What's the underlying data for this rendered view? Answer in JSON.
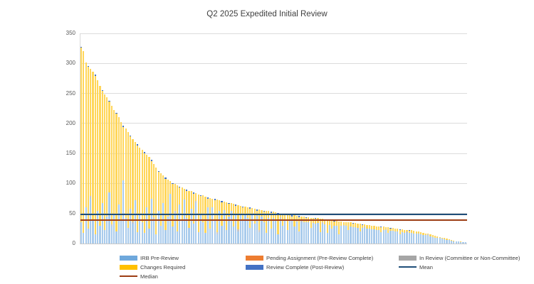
{
  "chart_data": {
    "type": "bar",
    "stacked": true,
    "title": "Q2 2025 Expedited Initial Review",
    "n_bars": 165,
    "grid": true,
    "legend_position": "bottom",
    "x_axis": {
      "labels_visible": false
    },
    "y_axis": {
      "min": 0,
      "max": 350,
      "tick_interval": 50,
      "ticks": [
        0,
        50,
        100,
        150,
        200,
        250,
        300,
        350
      ]
    },
    "series": [
      {
        "name": "IRB Pre-Review",
        "color": "#a9cbec",
        "values": [
          35,
          18,
          60,
          25,
          75,
          40,
          15,
          55,
          30,
          68,
          22,
          45,
          85,
          28,
          50,
          20,
          65,
          38,
          105,
          42,
          26,
          58,
          33,
          72,
          19,
          48,
          35,
          18,
          60,
          25,
          75,
          40,
          15,
          55,
          30,
          68,
          22,
          45,
          83,
          28,
          50,
          20,
          65,
          38,
          73,
          42,
          26,
          58,
          33,
          67,
          19,
          48,
          35,
          18,
          60,
          25,
          60,
          40,
          15,
          55,
          30,
          56,
          22,
          45,
          54,
          28,
          50,
          20,
          50,
          38,
          49,
          42,
          26,
          47,
          33,
          46,
          19,
          45,
          35,
          18,
          43,
          25,
          42,
          40,
          15,
          40,
          30,
          39,
          22,
          38,
          38,
          28,
          37,
          20,
          36,
          36,
          35,
          35,
          26,
          34,
          33,
          34,
          19,
          33,
          32,
          18,
          31,
          25,
          30,
          30,
          15,
          30,
          29,
          29,
          22,
          28,
          27,
          27,
          26,
          20,
          26,
          26,
          25,
          25,
          24,
          24,
          23,
          23,
          19,
          22,
          22,
          18,
          21,
          21,
          20,
          20,
          15,
          19,
          18,
          18,
          18,
          18,
          17,
          16,
          16,
          15,
          14,
          14,
          13,
          12,
          11,
          10,
          10,
          9,
          8,
          7,
          6,
          6,
          5,
          4,
          3,
          3,
          2,
          2,
          2
        ]
      },
      {
        "name": "Pending Assignment (Pre-Review Complete)",
        "color": "#ed7d31",
        "values": [
          0,
          0,
          0,
          0,
          0,
          0,
          0,
          0,
          0,
          0,
          0,
          0,
          0,
          0,
          0,
          0,
          0,
          0,
          0,
          0,
          0,
          0,
          0,
          0,
          0,
          0,
          0,
          0,
          0,
          0,
          0,
          0,
          0,
          0,
          0,
          0,
          0,
          0,
          0,
          0,
          0,
          0,
          0,
          0,
          0,
          0,
          0,
          0,
          0,
          0,
          0,
          0,
          0,
          0,
          0,
          0,
          0,
          0,
          0,
          0,
          0,
          0,
          0,
          0,
          0,
          0,
          0,
          0,
          0,
          0,
          0,
          0,
          0,
          0,
          0,
          0,
          0,
          0,
          0,
          0,
          0,
          0,
          0,
          0,
          0,
          0,
          0,
          0,
          0,
          0,
          0,
          0,
          0,
          0,
          0,
          0,
          0,
          0,
          0,
          0,
          0,
          0,
          0,
          0,
          0,
          0,
          0,
          0,
          0,
          0,
          0,
          0,
          0,
          0,
          0,
          0,
          0,
          0,
          0,
          0,
          0,
          0,
          0,
          0,
          0,
          0,
          0,
          0,
          0,
          0,
          0,
          0,
          0,
          0,
          0,
          0,
          0,
          0,
          0,
          0,
          0,
          0,
          0,
          0,
          0,
          0,
          0,
          0,
          0,
          0,
          0,
          0,
          0,
          0,
          0,
          0,
          0,
          0,
          0,
          0,
          0,
          0,
          0,
          0,
          0
        ]
      },
      {
        "name": "In Review (Committee or Non-Committee)",
        "color": "#c6c4c4",
        "values": [
          0,
          0,
          0,
          0,
          4,
          0,
          0,
          0,
          0,
          0,
          0,
          0,
          0,
          4,
          0,
          0,
          0,
          0,
          0,
          0,
          0,
          0,
          4,
          0,
          0,
          0,
          0,
          0,
          0,
          0,
          0,
          4,
          0,
          0,
          0,
          0,
          0,
          0,
          0,
          0,
          4,
          0,
          0,
          0,
          0,
          0,
          0,
          0,
          0,
          4,
          0,
          0,
          0,
          0,
          0,
          0,
          0,
          0,
          4,
          0,
          0,
          0,
          0,
          0,
          0,
          0,
          0,
          4,
          0,
          0,
          0,
          0,
          0,
          0,
          0,
          0,
          4,
          0,
          0,
          0,
          0,
          0,
          0,
          0,
          0,
          4,
          0,
          0,
          0,
          0,
          0,
          0,
          0,
          0,
          4,
          0,
          0,
          0,
          0,
          0,
          0,
          0,
          0,
          2,
          0,
          0,
          0,
          0,
          0,
          0,
          0,
          0,
          2,
          0,
          0,
          0,
          0,
          0,
          0,
          0,
          0,
          2,
          0,
          0,
          0,
          0,
          0,
          0,
          0,
          0,
          2,
          0,
          0,
          0,
          0,
          0,
          0,
          0,
          0,
          2,
          0,
          0,
          0,
          0,
          0,
          0,
          0,
          0,
          2,
          0,
          0,
          0,
          0,
          0,
          0,
          0,
          0,
          0,
          0,
          0,
          0,
          0,
          0,
          0,
          0
        ]
      },
      {
        "name": "Changes Required",
        "color": "#ffd65a",
        "values": [
          291,
          302,
          241,
          269,
          212,
          246,
          264,
          217,
          232,
          186,
          226,
          199,
          151,
          198,
          172,
          196,
          145,
          164,
          89,
          150,
          160,
          120,
          137,
          97,
          144,
          112,
          121,
          132,
          88,
          119,
          62,
          88,
          111,
          64,
          87,
          45,
          86,
          62,
          21,
          71,
          45,
          77,
          28,
          55,
          18,
          46,
          62,
          29,
          50,
          13,
          63,
          31,
          45,
          60,
          15,
          51,
          15,
          32,
          54,
          17,
          39,
          14,
          47,
          21,
          13,
          38,
          13,
          40,
          13,
          22,
          12,
          18,
          32,
          12,
          25,
          9,
          34,
          11,
          18,
          37,
          11,
          26,
          11,
          12,
          34,
          6,
          20,
          8,
          26,
          10,
          7,
          19,
          9,
          24,
          5,
          9,
          8,
          9,
          17,
          9,
          8,
          8,
          22,
          6,
          7,
          22,
          8,
          14,
          7,
          8,
          22,
          7,
          4,
          7,
          13,
          7,
          6,
          7,
          7,
          13,
          5,
          4,
          6,
          6,
          5,
          6,
          6,
          6,
          8,
          6,
          3,
          9,
          4,
          5,
          5,
          5,
          8,
          5,
          5,
          3,
          3,
          4,
          4,
          4,
          4,
          4,
          4,
          3,
          1,
          3,
          3,
          3,
          2,
          2,
          2,
          2,
          2,
          1,
          1,
          1,
          1,
          1,
          1,
          0,
          0
        ]
      },
      {
        "name": "Review Complete (Post-Review)",
        "color": "#4472c4",
        "values": [
          2,
          0,
          0,
          2,
          0,
          0,
          2,
          0,
          0,
          2,
          0,
          0,
          2,
          0,
          0,
          2,
          0,
          0,
          2,
          0,
          0,
          2,
          0,
          0,
          2,
          0,
          0,
          2,
          0,
          0,
          2,
          0,
          0,
          2,
          0,
          0,
          2,
          0,
          0,
          2,
          0,
          0,
          2,
          0,
          0,
          2,
          0,
          0,
          2,
          0,
          0,
          2,
          0,
          0,
          2,
          0,
          0,
          2,
          0,
          0,
          2,
          0,
          0,
          2,
          0,
          0,
          2,
          0,
          0,
          2,
          0,
          0,
          2,
          0,
          0,
          2,
          0,
          0,
          2,
          0,
          0,
          2,
          0,
          0,
          2,
          0,
          0,
          2,
          0,
          0,
          2,
          0,
          0,
          2,
          0,
          0,
          1,
          0,
          0,
          0,
          1,
          0,
          0,
          0,
          1,
          0,
          0,
          0,
          1,
          0,
          0,
          0,
          1,
          0,
          0,
          0,
          1,
          0,
          0,
          0,
          1,
          0,
          0,
          0,
          1,
          0,
          0,
          0,
          1,
          0,
          0,
          0,
          1,
          0,
          0,
          0,
          1,
          0,
          0,
          0,
          1,
          0,
          0,
          0,
          0,
          0,
          0,
          0,
          0,
          0,
          0,
          0,
          0,
          0,
          0,
          0,
          0,
          0,
          0,
          0,
          0,
          0,
          0,
          0,
          0
        ]
      }
    ],
    "reference_lines": [
      {
        "name": "Mean",
        "value": 48,
        "color": "#1f4e79"
      },
      {
        "name": "Median",
        "value": 39,
        "color": "#9c3d14"
      }
    ]
  },
  "legend": {
    "items": [
      {
        "label": "IRB Pre-Review",
        "swatch": "box",
        "color": "#6fa8dc",
        "key": "irb-pre-review"
      },
      {
        "label": "Pending Assignment (Pre-Review Complete)",
        "swatch": "box",
        "color": "#ed7d31",
        "key": "pending-assignment"
      },
      {
        "label": "In Review (Committee or Non-Committee)",
        "swatch": "box",
        "color": "#a6a6a6",
        "key": "in-review"
      },
      {
        "label": "Changes Required",
        "swatch": "box",
        "color": "#ffc000",
        "key": "changes-required"
      },
      {
        "label": "Review Complete (Post-Review)",
        "swatch": "box",
        "color": "#4472c4",
        "key": "review-complete"
      },
      {
        "label": "Mean",
        "swatch": "line",
        "color": "#1f4e79",
        "key": "mean"
      },
      {
        "label": "Median",
        "swatch": "line",
        "color": "#9c3d14",
        "key": "median"
      }
    ]
  }
}
